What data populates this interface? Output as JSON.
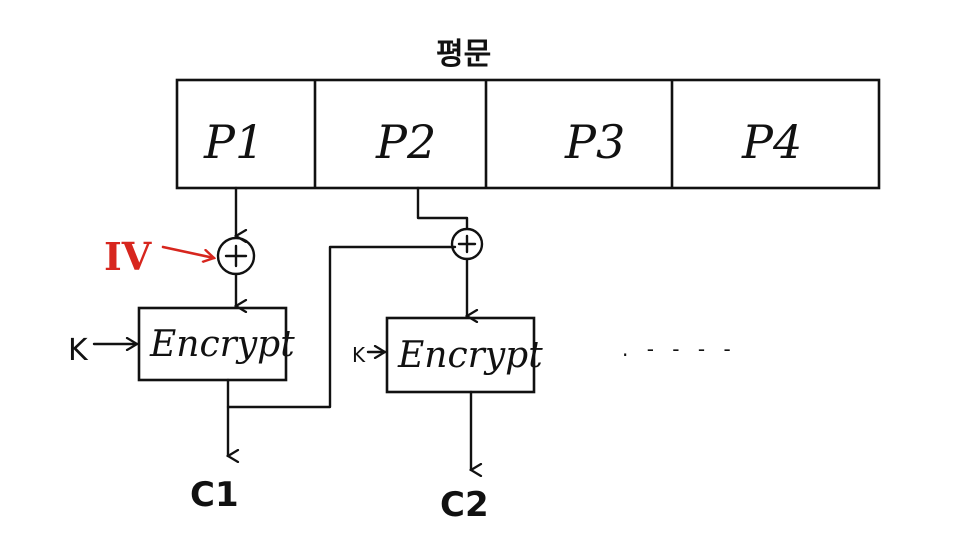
{
  "title": "평문",
  "plaintext_blocks": [
    "P1",
    "P2",
    "P3",
    "P4"
  ],
  "iv_label": "IV",
  "key_label": "K",
  "encrypt_label": "Encrypt",
  "ciphertext_labels": [
    "C1",
    "C2"
  ],
  "ellipsis": ". - - - -",
  "colors": {
    "ink": "#111111",
    "iv": "#d7261e",
    "background": "#ffffff"
  }
}
